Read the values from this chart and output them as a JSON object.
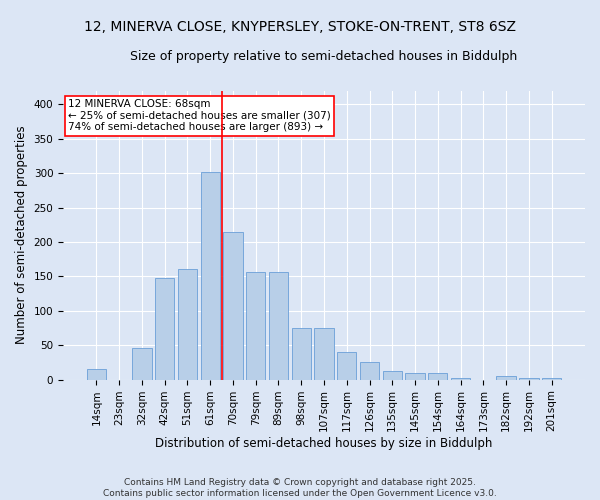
{
  "title1": "12, MINERVA CLOSE, KNYPERSLEY, STOKE-ON-TRENT, ST8 6SZ",
  "title2": "Size of property relative to semi-detached houses in Biddulph",
  "xlabel": "Distribution of semi-detached houses by size in Biddulph",
  "ylabel": "Number of semi-detached properties",
  "categories": [
    "14sqm",
    "23sqm",
    "32sqm",
    "42sqm",
    "51sqm",
    "61sqm",
    "70sqm",
    "79sqm",
    "89sqm",
    "98sqm",
    "107sqm",
    "117sqm",
    "126sqm",
    "135sqm",
    "145sqm",
    "154sqm",
    "164sqm",
    "173sqm",
    "182sqm",
    "192sqm",
    "201sqm"
  ],
  "values": [
    15,
    0,
    46,
    148,
    160,
    302,
    215,
    157,
    157,
    75,
    75,
    40,
    25,
    12,
    10,
    9,
    2,
    0,
    5,
    2,
    2
  ],
  "bar_color": "#b8cfe8",
  "bar_edge_color": "#6a9fd8",
  "annotation_text_line1": "12 MINERVA CLOSE: 68sqm",
  "annotation_text_line2": "← 25% of semi-detached houses are smaller (307)",
  "annotation_text_line3": "74% of semi-detached houses are larger (893) →",
  "vline_color": "red",
  "box_edge_color": "red",
  "ylim": [
    0,
    420
  ],
  "yticks": [
    0,
    50,
    100,
    150,
    200,
    250,
    300,
    350,
    400
  ],
  "footer": "Contains HM Land Registry data © Crown copyright and database right 2025.\nContains public sector information licensed under the Open Government Licence v3.0.",
  "background_color": "#dce6f5",
  "plot_background": "#dce6f5",
  "grid_color": "#ffffff",
  "title_fontsize": 10,
  "subtitle_fontsize": 9,
  "axis_label_fontsize": 8.5,
  "tick_fontsize": 7.5,
  "annotation_fontsize": 7.5,
  "footer_fontsize": 6.5
}
